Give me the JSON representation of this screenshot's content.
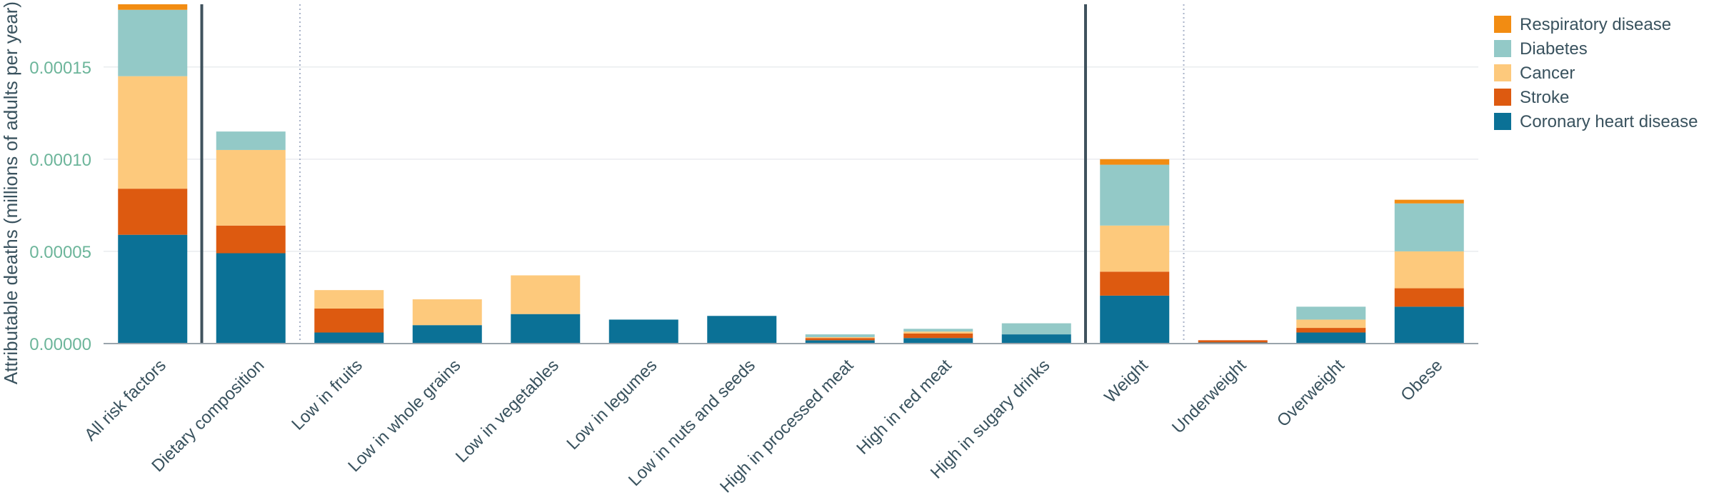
{
  "chart_data": {
    "type": "bar",
    "stacked": true,
    "title": "",
    "xlabel": "",
    "ylabel": "Attributable deaths (millions of adults per year)",
    "ylim": [
      0,
      0.000184
    ],
    "yticks": [
      "0.00000",
      "0.00005",
      "0.00010",
      "0.00015"
    ],
    "ytick_values": [
      0,
      5e-05,
      0.0001,
      0.00015
    ],
    "grid": true,
    "legend_position": "top-right",
    "categories": [
      "All risk factors",
      "Dietary composition",
      "Low in fruits",
      "Low in whole grains",
      "Low in vegetables",
      "Low in legumes",
      "Low in nuts and seeds",
      "High in processed meat",
      "High in red meat",
      "High in sugary drinks",
      "Weight",
      "Underweight",
      "Overweight",
      "Obese"
    ],
    "separators": [
      {
        "after_index": 0,
        "style": "solid"
      },
      {
        "after_index": 1,
        "style": "dotted"
      },
      {
        "after_index": 9,
        "style": "solid"
      },
      {
        "after_index": 10,
        "style": "dotted"
      }
    ],
    "series": [
      {
        "name": "Coronary heart disease",
        "color": "#0b7196",
        "values": [
          5.9e-05,
          4.9e-05,
          6e-06,
          1e-05,
          1.6e-05,
          1.3e-05,
          1.5e-05,
          1.8e-06,
          3e-06,
          5e-06,
          2.6e-05,
          6e-07,
          6e-06,
          2e-05
        ]
      },
      {
        "name": "Stroke",
        "color": "#dd5a10",
        "values": [
          2.5e-05,
          1.5e-05,
          1.3e-05,
          0,
          0,
          0,
          0,
          1.2e-06,
          2.5e-06,
          0,
          1.3e-05,
          1.2e-06,
          2.5e-06,
          1e-05
        ]
      },
      {
        "name": "Cancer",
        "color": "#fdc97c",
        "values": [
          6.1e-05,
          4.1e-05,
          1e-05,
          1.4e-05,
          2.1e-05,
          0,
          0,
          5e-07,
          1e-06,
          0,
          2.5e-05,
          0,
          4.5e-06,
          2e-05
        ]
      },
      {
        "name": "Diabetes",
        "color": "#93c9c7",
        "values": [
          3.6e-05,
          1e-05,
          0,
          0,
          0,
          0,
          0,
          1.5e-06,
          1.5e-06,
          6e-06,
          3.3e-05,
          0,
          7e-06,
          2.6e-05
        ]
      },
      {
        "name": "Respiratory disease",
        "color": "#f28c12",
        "values": [
          3e-06,
          0,
          0,
          0,
          0,
          0,
          0,
          0,
          0,
          0,
          3e-06,
          0,
          0,
          2e-06
        ]
      }
    ]
  },
  "colors": {
    "axis_tick_text": "#6cb59a",
    "label_text": "#39525e",
    "grid": "#e9ecef",
    "baseline": "#9aa4ab",
    "separator_solid": "#3f525d",
    "separator_dotted": "#a9b3c8"
  }
}
